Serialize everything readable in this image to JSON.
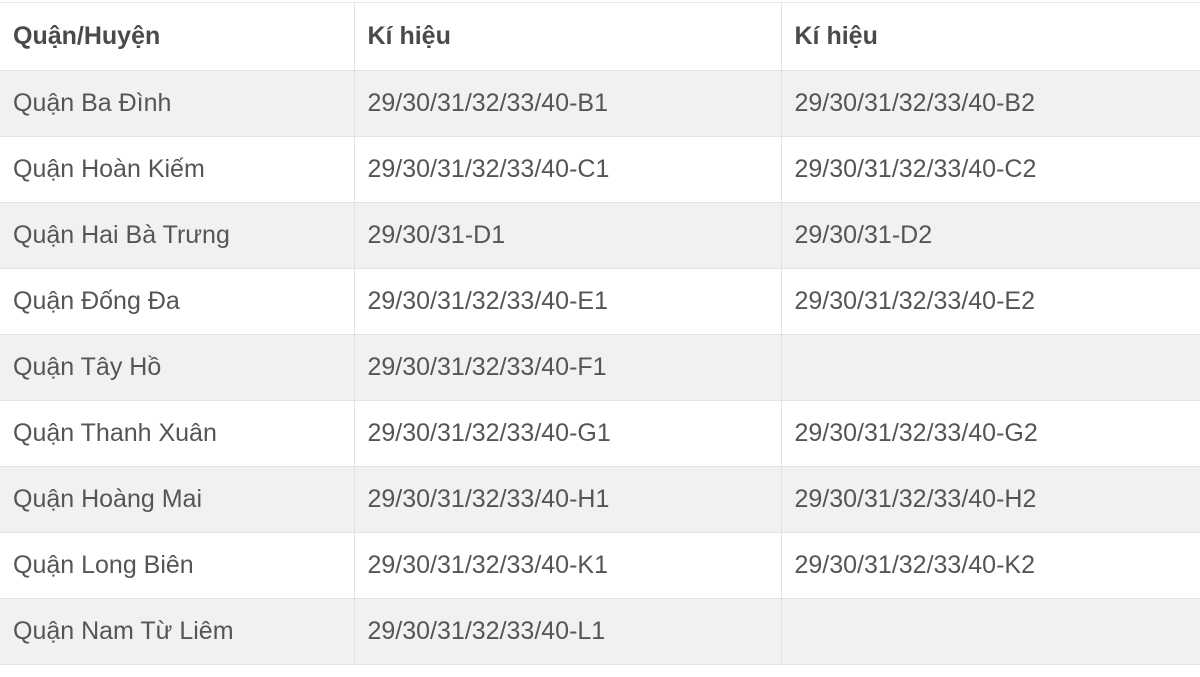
{
  "table": {
    "headers": [
      "Quận/Huyện",
      "Kí hiệu",
      "Kí hiệu"
    ],
    "rows": [
      [
        "Quận Ba Đình",
        "29/30/31/32/33/40-B1",
        "29/30/31/32/33/40-B2"
      ],
      [
        "Quận Hoàn Kiếm",
        "29/30/31/32/33/40-C1",
        "29/30/31/32/33/40-C2"
      ],
      [
        "Quận Hai Bà Trưng",
        "29/30/31-D1",
        "29/30/31-D2"
      ],
      [
        "Quận Đống Đa",
        "29/30/31/32/33/40-E1",
        "29/30/31/32/33/40-E2"
      ],
      [
        "Quận Tây Hồ",
        "29/30/31/32/33/40-F1",
        ""
      ],
      [
        "Quận Thanh Xuân",
        "29/30/31/32/33/40-G1",
        "29/30/31/32/33/40-G2"
      ],
      [
        "Quận Hoàng Mai",
        "29/30/31/32/33/40-H1",
        "29/30/31/32/33/40-H2"
      ],
      [
        "Quận Long Biên",
        "29/30/31/32/33/40-K1",
        "29/30/31/32/33/40-K2"
      ],
      [
        "Quận Nam Từ Liêm",
        "29/30/31/32/33/40-L1",
        ""
      ]
    ]
  }
}
